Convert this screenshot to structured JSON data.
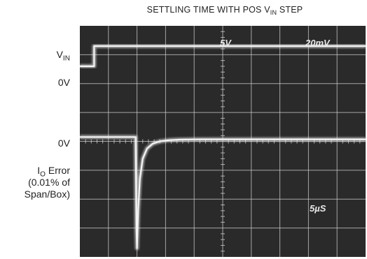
{
  "chart_data": {
    "type": "line",
    "title_main": "SETTLING TIME WITH POS V",
    "title_sub": "IN",
    "title_end": " STEP",
    "scope_readouts": {
      "ch1_scale": "5V",
      "ch2_scale": "20mV",
      "timebase": "5µS"
    },
    "left_labels": {
      "vin_main": "V",
      "vin_sub": "IN",
      "vin_zero": "0V",
      "io_zero": "0V",
      "io_main": "I",
      "io_sub": "O",
      "io_rest": " Error",
      "io_line2": "(0.01% of",
      "io_line3": "Span/Box)"
    },
    "grid": {
      "x_divisions": 10,
      "y_divisions": 8
    },
    "xlim": [
      0,
      10
    ],
    "ylim": [
      0,
      8
    ],
    "series": [
      {
        "x": [
          0,
          0.5,
          0.5,
          10
        ],
        "y": [
          6.6,
          6.6,
          7.3,
          7.3
        ]
      },
      {
        "x": [
          0,
          0.5,
          0.5,
          1.95,
          1.98,
          2.0,
          2.04,
          2.1,
          2.2,
          2.35,
          2.55,
          2.8,
          3.1,
          3.5,
          4.2,
          5.0,
          10
        ],
        "y": [
          4.15,
          4.15,
          4.15,
          4.15,
          1.0,
          0.3,
          1.6,
          2.7,
          3.4,
          3.75,
          3.92,
          4.0,
          4.04,
          4.06,
          4.07,
          4.07,
          4.07
        ]
      }
    ],
    "colors": {
      "screen": "#2a2a2a",
      "grid": "#cfcfcf",
      "trace": "#f4f4f4"
    }
  }
}
